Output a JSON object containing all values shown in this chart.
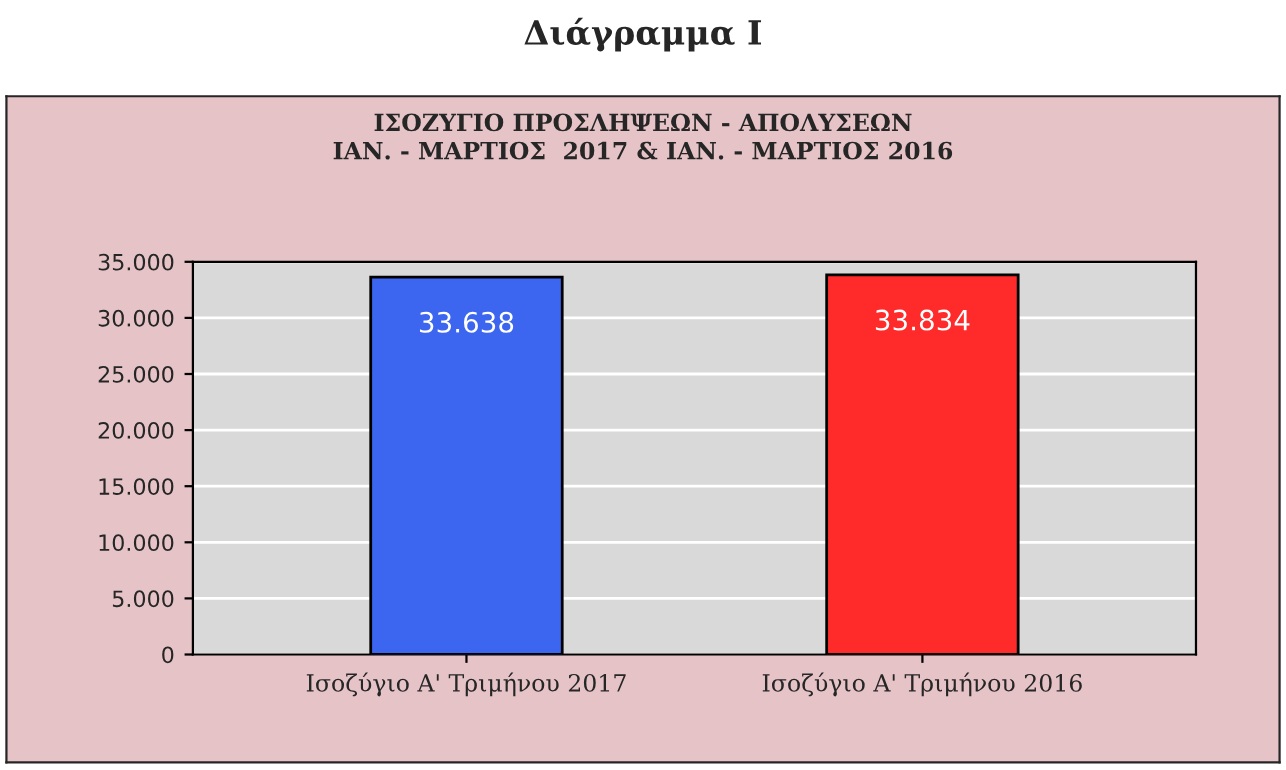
{
  "chart_data": {
    "type": "bar",
    "title": "Διάγραμμα I",
    "subtitle": "ΙΣΟΖΥΓΙΟ ΠΡΟΣΛΗΨΕΩΝ - ΑΠΟΛΥΣΕΩΝ\nΙΑΝ. - ΜΑΡΤΙΟΣ  2017 & ΙΑΝ. - ΜΑΡΤΙΟΣ 2016",
    "categories": [
      "Ισοζύγιο Α' Τριμήνου 2017",
      "Ισοζύγιο Α' Τριμήνου 2016"
    ],
    "values": [
      33638,
      33834
    ],
    "value_labels": [
      "33.638",
      "33.834"
    ],
    "colors": [
      "#3d66f0",
      "#ff2a2a"
    ],
    "ylim": [
      0,
      35000
    ],
    "yticks": [
      {
        "value": 0,
        "label": "0"
      },
      {
        "value": 5000,
        "label": "5.000"
      },
      {
        "value": 10000,
        "label": "10.000"
      },
      {
        "value": 15000,
        "label": "15.000"
      },
      {
        "value": 20000,
        "label": "20.000"
      },
      {
        "value": 25000,
        "label": "25.000"
      },
      {
        "value": 30000,
        "label": "30.000"
      },
      {
        "value": 35000,
        "label": "35.000"
      }
    ],
    "grid": "y"
  }
}
